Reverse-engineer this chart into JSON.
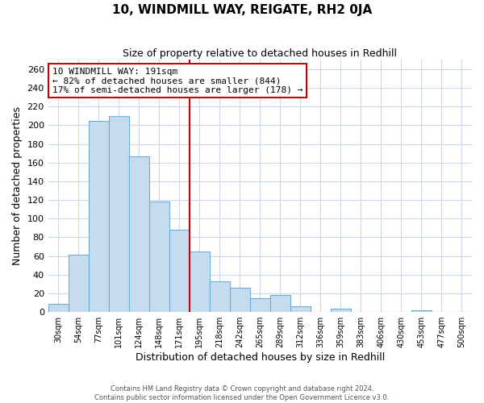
{
  "title": "10, WINDMILL WAY, REIGATE, RH2 0JA",
  "subtitle": "Size of property relative to detached houses in Redhill",
  "xlabel": "Distribution of detached houses by size in Redhill",
  "ylabel": "Number of detached properties",
  "bar_labels": [
    "30sqm",
    "54sqm",
    "77sqm",
    "101sqm",
    "124sqm",
    "148sqm",
    "171sqm",
    "195sqm",
    "218sqm",
    "242sqm",
    "265sqm",
    "289sqm",
    "312sqm",
    "336sqm",
    "359sqm",
    "383sqm",
    "406sqm",
    "430sqm",
    "453sqm",
    "477sqm",
    "500sqm"
  ],
  "bar_values": [
    9,
    61,
    205,
    210,
    167,
    118,
    88,
    65,
    33,
    26,
    15,
    18,
    6,
    0,
    4,
    0,
    0,
    0,
    2,
    0,
    0
  ],
  "bar_color": "#c6dcee",
  "bar_edge_color": "#6baed6",
  "marker_bar_index": 7,
  "marker_line_color": "#cc0000",
  "annotation_line1": "10 WINDMILL WAY: 191sqm",
  "annotation_line2": "← 82% of detached houses are smaller (844)",
  "annotation_line3": "17% of semi-detached houses are larger (178) →",
  "ylim": [
    0,
    270
  ],
  "yticks": [
    0,
    20,
    40,
    60,
    80,
    100,
    120,
    140,
    160,
    180,
    200,
    220,
    240,
    260
  ],
  "footer_line1": "Contains HM Land Registry data © Crown copyright and database right 2024.",
  "footer_line2": "Contains public sector information licensed under the Open Government Licence v3.0.",
  "background_color": "#ffffff",
  "grid_color": "#cdd8e8"
}
